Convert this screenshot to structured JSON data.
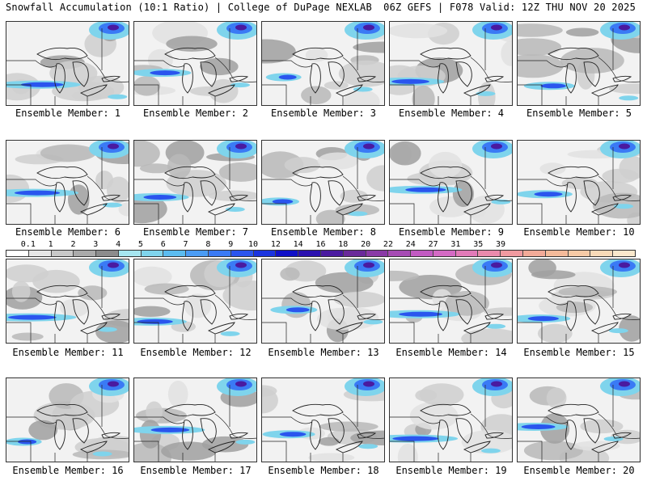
{
  "header": {
    "left": "Snowfall Accumulation (10:1 Ratio) | College of DuPage NEXLAB",
    "right": "06Z GEFS | F078 Valid: 12Z THU NOV 20 2025"
  },
  "member_prefix": "Ensemble Member:",
  "members": [
    1,
    2,
    3,
    4,
    5,
    6,
    7,
    8,
    9,
    10,
    11,
    12,
    13,
    14,
    15,
    16,
    17,
    18,
    19,
    20
  ],
  "colorbar": {
    "labels": [
      "0.1",
      "1",
      "2",
      "3",
      "4",
      "5",
      "6",
      "7",
      "8",
      "9",
      "10",
      "12",
      "14",
      "16",
      "18",
      "20",
      "22",
      "24",
      "27",
      "31",
      "35",
      "39"
    ],
    "colors": [
      "#ffffff",
      "#e6e6e6",
      "#c8c8c8",
      "#aaaaaa",
      "#8c8c8c",
      "#a6e6f0",
      "#7fd4ec",
      "#5bbcf0",
      "#4a9cf5",
      "#3a7af5",
      "#2a55ee",
      "#1a34e0",
      "#1010c8",
      "#2a10b0",
      "#4a1aa0",
      "#6a2a9a",
      "#8a3aa6",
      "#a64ab4",
      "#c25ac2",
      "#d46ac4",
      "#e27ab8",
      "#ea8aac",
      "#f09aa0",
      "#f2aa98",
      "#f4ba9a",
      "#f6caa6",
      "#f8dab8",
      "#fae8cc"
    ]
  }
}
